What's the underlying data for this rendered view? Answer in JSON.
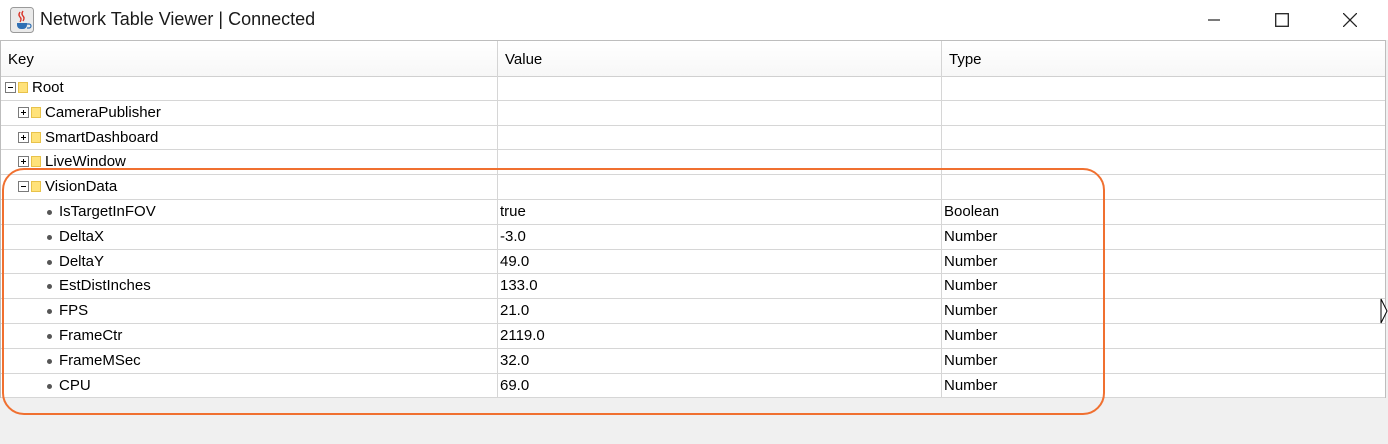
{
  "window": {
    "title": "Network Table Viewer | Connected",
    "icon": "java-coffee-cup-icon"
  },
  "table": {
    "columns": [
      "Key",
      "Value",
      "Type"
    ],
    "tree": {
      "root": {
        "label": "Root",
        "expanded": true
      },
      "folders": [
        {
          "label": "CameraPublisher",
          "expanded": false
        },
        {
          "label": "SmartDashboard",
          "expanded": false
        },
        {
          "label": "LiveWindow",
          "expanded": false
        },
        {
          "label": "VisionData",
          "expanded": true
        }
      ],
      "entries": [
        {
          "key": "IsTargetInFOV",
          "value": "true",
          "type": "Boolean"
        },
        {
          "key": "DeltaX",
          "value": "-3.0",
          "type": "Number"
        },
        {
          "key": "DeltaY",
          "value": "49.0",
          "type": "Number"
        },
        {
          "key": "EstDistInches",
          "value": "133.0",
          "type": "Number"
        },
        {
          "key": "FPS",
          "value": "21.0",
          "type": "Number"
        },
        {
          "key": "FrameCtr",
          "value": "2119.0",
          "type": "Number"
        },
        {
          "key": "FrameMSec",
          "value": "32.0",
          "type": "Number"
        },
        {
          "key": "CPU",
          "value": "69.0",
          "type": "Number"
        }
      ]
    }
  },
  "colors": {
    "highlight": "#f07030",
    "folder": "#ffe27a"
  }
}
